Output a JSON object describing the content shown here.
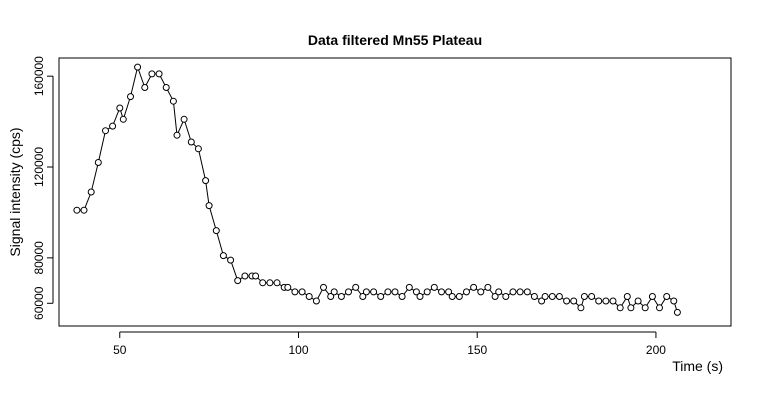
{
  "chart_data": {
    "type": "line",
    "title": "Data filtered Mn55 Plateau",
    "xlabel": "Time (s)",
    "ylabel": "Signal intensity (cps)",
    "xlim": [
      33,
      221
    ],
    "ylim": [
      50000,
      168000
    ],
    "x_ticks": [
      50,
      100,
      150,
      200
    ],
    "y_ticks": [
      60000,
      80000,
      120000,
      160000
    ],
    "points": {
      "marker": "circle",
      "series_style": "line with open circle markers"
    },
    "series": [
      {
        "x": [
          38,
          40,
          42,
          44,
          46,
          48,
          50,
          51,
          53,
          55,
          57,
          59,
          61,
          63,
          65,
          66,
          68,
          70,
          72,
          74,
          75,
          77,
          79,
          81,
          83,
          85,
          87,
          88,
          90,
          92,
          94,
          96,
          97,
          99,
          101,
          103,
          105,
          107,
          109,
          110,
          112,
          114,
          116,
          118,
          119,
          121,
          123,
          125,
          127,
          129,
          131,
          133,
          134,
          136,
          138,
          140,
          142,
          143,
          145,
          147,
          149,
          151,
          153,
          155,
          156,
          158,
          160,
          162,
          164,
          166,
          168,
          169,
          171,
          173,
          175,
          177,
          179,
          180,
          182,
          184,
          186,
          188,
          190,
          192,
          193,
          195,
          197,
          199,
          201,
          203,
          205,
          206
        ],
        "y": [
          101000,
          101000,
          109000,
          122000,
          136000,
          138000,
          146000,
          141000,
          151000,
          164000,
          155000,
          161000,
          161000,
          155000,
          149000,
          134000,
          141000,
          131000,
          128000,
          114000,
          103000,
          92000,
          81000,
          79000,
          70000,
          72000,
          72000,
          72000,
          69000,
          69000,
          69000,
          67000,
          67000,
          65000,
          65000,
          63000,
          61000,
          67000,
          63000,
          65000,
          63000,
          65000,
          67000,
          63000,
          65000,
          65000,
          63000,
          65000,
          65000,
          63000,
          67000,
          65000,
          63000,
          65000,
          67000,
          65000,
          65000,
          63000,
          63000,
          65000,
          67000,
          65000,
          67000,
          63000,
          65000,
          63000,
          65000,
          65000,
          65000,
          63000,
          61000,
          63000,
          63000,
          63000,
          61000,
          61000,
          58000,
          63000,
          63000,
          61000,
          61000,
          61000,
          58000,
          63000,
          58000,
          61000,
          58000,
          63000,
          58000,
          63000,
          61000,
          56000
        ]
      }
    ]
  }
}
